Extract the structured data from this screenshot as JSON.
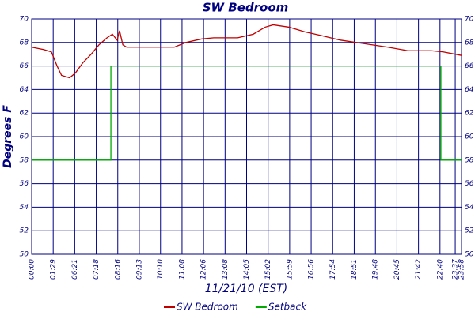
{
  "chart_data": {
    "type": "line",
    "title": "SW Bedroom",
    "xlabel": "11/21/10 (EST)",
    "ylabel": "Degrees F",
    "xlim": [
      0,
      1438
    ],
    "ylim": [
      50,
      70
    ],
    "yticks": [
      50,
      52,
      54,
      56,
      58,
      60,
      62,
      64,
      66,
      68,
      70
    ],
    "xticks": [
      {
        "value": 0,
        "label": "00:00"
      },
      {
        "value": 72,
        "label": "01:29"
      },
      {
        "value": 144,
        "label": "06:21"
      },
      {
        "value": 216,
        "label": "07:18"
      },
      {
        "value": 288,
        "label": "08:16"
      },
      {
        "value": 360,
        "label": "09:13"
      },
      {
        "value": 431,
        "label": "10:10"
      },
      {
        "value": 503,
        "label": "11:08"
      },
      {
        "value": 575,
        "label": "12:06"
      },
      {
        "value": 647,
        "label": "13:08"
      },
      {
        "value": 719,
        "label": "14:05"
      },
      {
        "value": 791,
        "label": "15:02"
      },
      {
        "value": 863,
        "label": "15:59"
      },
      {
        "value": 935,
        "label": "16:56"
      },
      {
        "value": 1007,
        "label": "17:54"
      },
      {
        "value": 1079,
        "label": "18:51"
      },
      {
        "value": 1150,
        "label": "19:48"
      },
      {
        "value": 1222,
        "label": "20:45"
      },
      {
        "value": 1294,
        "label": "21:42"
      },
      {
        "value": 1366,
        "label": "22:40"
      },
      {
        "value": 1417,
        "label": "23:37"
      },
      {
        "value": 1438,
        "label": "23:58"
      }
    ],
    "grid": true,
    "legend": "bottom",
    "series": [
      {
        "name": "SW Bedroom",
        "color": "#c00000",
        "x": [
          0,
          40,
          66,
          85,
          100,
          127,
          146,
          172,
          199,
          225,
          252,
          270,
          286,
          294,
          305,
          318,
          371,
          477,
          516,
          569,
          609,
          689,
          741,
          781,
          808,
          861,
          914,
          967,
          1033,
          1112,
          1192,
          1258,
          1298,
          1337,
          1377,
          1438
        ],
        "values": [
          67.6,
          67.4,
          67.2,
          66.0,
          65.2,
          65.0,
          65.4,
          66.3,
          67.0,
          67.8,
          68.4,
          68.7,
          68.2,
          69.0,
          67.8,
          67.6,
          67.6,
          67.6,
          68.0,
          68.3,
          68.4,
          68.4,
          68.7,
          69.3,
          69.5,
          69.3,
          68.9,
          68.6,
          68.2,
          67.9,
          67.6,
          67.3,
          67.3,
          67.3,
          67.2,
          66.9
        ]
      },
      {
        "name": "Setback",
        "color": "#00aa00",
        "x": [
          0,
          265,
          265,
          1369,
          1369,
          1438
        ],
        "values": [
          58,
          58,
          66,
          66,
          58,
          58
        ]
      }
    ]
  }
}
